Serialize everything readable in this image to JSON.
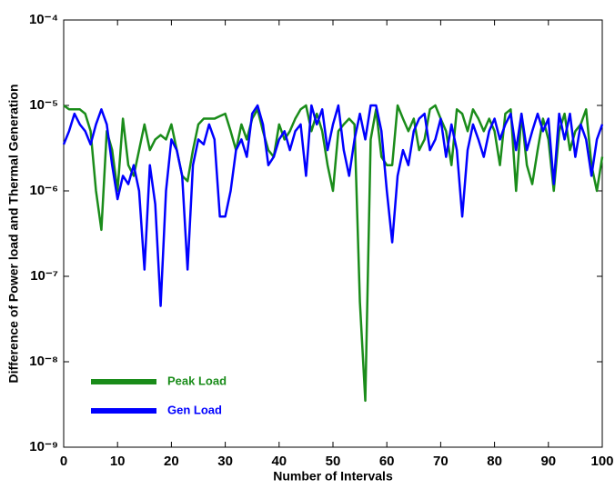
{
  "chart_data": {
    "type": "line",
    "xlabel": "Number of Intervals",
    "ylabel": "Difference of Power load and Thermal Generation",
    "x": [
      0,
      1,
      2,
      3,
      4,
      5,
      6,
      7,
      8,
      9,
      10,
      11,
      12,
      13,
      14,
      15,
      16,
      17,
      18,
      19,
      20,
      21,
      22,
      23,
      24,
      25,
      26,
      27,
      28,
      29,
      30,
      31,
      32,
      33,
      34,
      35,
      36,
      37,
      38,
      39,
      40,
      41,
      42,
      43,
      44,
      45,
      46,
      47,
      48,
      49,
      50,
      51,
      52,
      53,
      54,
      55,
      56,
      57,
      58,
      59,
      60,
      61,
      62,
      63,
      64,
      65,
      66,
      67,
      68,
      69,
      70,
      71,
      72,
      73,
      74,
      75,
      76,
      77,
      78,
      79,
      80,
      81,
      82,
      83,
      84,
      85,
      86,
      87,
      88,
      89,
      90,
      91,
      92,
      93,
      94,
      95,
      96,
      97,
      98,
      99,
      100
    ],
    "series": [
      {
        "name": "Peak Load",
        "color": "#1a8c1a",
        "values": [
          1e-05,
          9e-06,
          9e-06,
          9e-06,
          8e-06,
          5e-06,
          1e-06,
          3.5e-07,
          5e-06,
          3e-06,
          1e-06,
          7e-06,
          2e-06,
          1.5e-06,
          3e-06,
          6e-06,
          3e-06,
          4e-06,
          4.5e-06,
          4e-06,
          6e-06,
          3e-06,
          1.5e-06,
          1.3e-06,
          3e-06,
          6e-06,
          7e-06,
          7e-06,
          7e-06,
          7.5e-06,
          8e-06,
          5e-06,
          3e-06,
          6e-06,
          4e-06,
          7e-06,
          9e-06,
          5e-06,
          3e-06,
          2.5e-06,
          6e-06,
          4e-06,
          5e-06,
          7e-06,
          9e-06,
          1e-05,
          5e-06,
          8e-06,
          5e-06,
          2e-06,
          1e-06,
          5e-06,
          6e-06,
          7e-06,
          6e-06,
          5e-08,
          3.5e-09,
          4e-06,
          9e-06,
          2.5e-06,
          2e-06,
          2e-06,
          1e-05,
          7e-06,
          5e-06,
          7e-06,
          3e-06,
          4e-06,
          9e-06,
          1e-05,
          7e-06,
          5e-06,
          2e-06,
          9e-06,
          8e-06,
          5e-06,
          9e-06,
          7e-06,
          5e-06,
          7e-06,
          5e-06,
          2e-06,
          8e-06,
          9e-06,
          1e-06,
          8e-06,
          2e-06,
          1.2e-06,
          3e-06,
          7e-06,
          4e-06,
          1e-06,
          5e-06,
          8e-06,
          3e-06,
          5e-06,
          6e-06,
          9e-06,
          2e-06,
          1e-06,
          2.5e-06
        ]
      },
      {
        "name": "Gen Load",
        "color": "#0000ff",
        "values": [
          3.5e-06,
          5e-06,
          8e-06,
          6e-06,
          5e-06,
          3.5e-06,
          6e-06,
          9e-06,
          6e-06,
          2e-06,
          8e-07,
          1.5e-06,
          1.2e-06,
          2e-06,
          1e-06,
          1.2e-07,
          2e-06,
          7e-07,
          4.5e-08,
          1e-06,
          4e-06,
          3e-06,
          1.5e-06,
          1.2e-07,
          2e-06,
          4e-06,
          3.5e-06,
          6e-06,
          4e-06,
          5e-07,
          5e-07,
          1e-06,
          3e-06,
          4e-06,
          2.5e-06,
          8e-06,
          1e-05,
          6e-06,
          2e-06,
          2.5e-06,
          4e-06,
          5e-06,
          3e-06,
          5e-06,
          6e-06,
          1.5e-06,
          1e-05,
          6e-06,
          9e-06,
          3e-06,
          6e-06,
          1e-05,
          3e-06,
          1.5e-06,
          4e-06,
          8e-06,
          4e-06,
          1e-05,
          1e-05,
          5e-06,
          1e-06,
          2.5e-07,
          1.5e-06,
          3e-06,
          2e-06,
          5e-06,
          7e-06,
          8e-06,
          3e-06,
          4e-06,
          7e-06,
          2.5e-06,
          6e-06,
          3e-06,
          5e-07,
          3e-06,
          6e-06,
          4e-06,
          2.5e-06,
          5e-06,
          7e-06,
          4e-06,
          6e-06,
          8e-06,
          3e-06,
          8e-06,
          3e-06,
          5e-06,
          8e-06,
          5e-06,
          7e-06,
          1.2e-06,
          8e-06,
          4e-06,
          8e-06,
          2.5e-06,
          6e-06,
          4e-06,
          1.5e-06,
          4e-06,
          6e-06
        ]
      }
    ],
    "xlim": [
      0,
      100
    ],
    "xticks": [
      0,
      10,
      20,
      30,
      40,
      50,
      60,
      70,
      80,
      90,
      100
    ],
    "ylim": [
      1e-09,
      0.0001
    ],
    "ylog": true,
    "yticks": [
      {
        "value": 1e-09,
        "label": "10⁻⁹"
      },
      {
        "value": 1e-08,
        "label": "10⁻⁸"
      },
      {
        "value": 1e-07,
        "label": "10⁻⁷"
      },
      {
        "value": 1e-06,
        "label": "10⁻⁶"
      },
      {
        "value": 1e-05,
        "label": "10⁻⁵"
      },
      {
        "value": 0.0001,
        "label": "10⁻⁴"
      }
    ],
    "legend": "lower left"
  }
}
